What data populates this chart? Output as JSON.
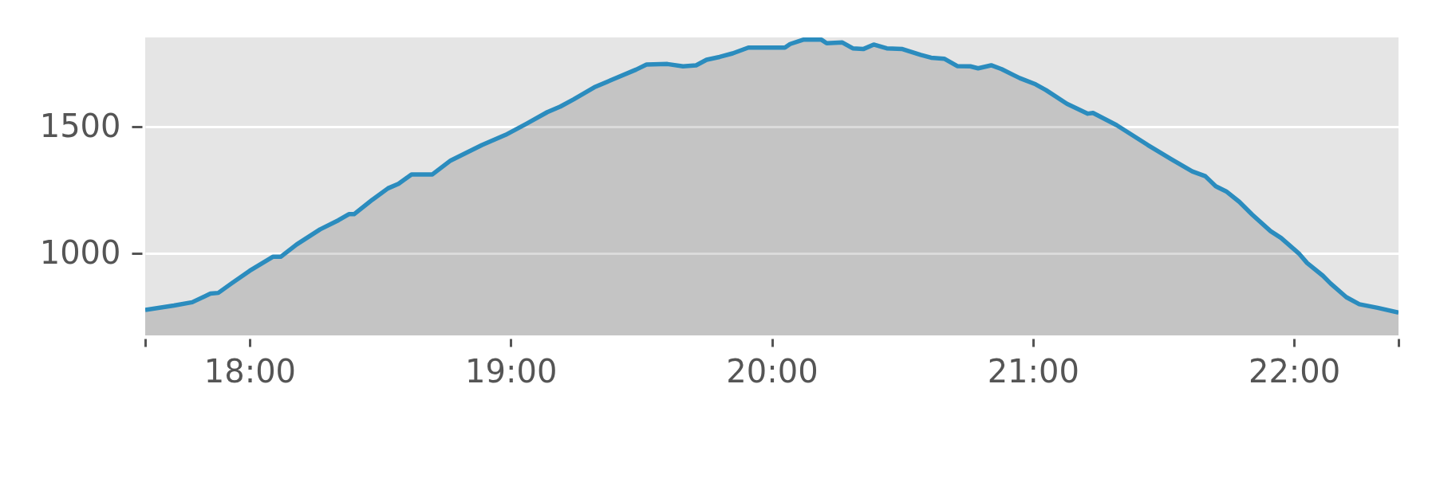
{
  "chart_data": {
    "type": "area",
    "color": "#2b8cbe",
    "x": [
      17.6,
      17.71,
      17.78,
      17.85,
      17.88,
      17.93,
      18.0,
      18.09,
      18.12,
      18.18,
      18.27,
      18.34,
      18.38,
      18.4,
      18.47,
      18.53,
      18.57,
      18.62,
      18.66,
      18.7,
      18.77,
      18.89,
      18.98,
      19.06,
      19.14,
      19.19,
      19.24,
      19.32,
      19.39,
      19.48,
      19.52,
      19.6,
      19.66,
      19.71,
      19.75,
      19.8,
      19.85,
      19.91,
      20.05,
      20.07,
      20.12,
      20.19,
      20.21,
      20.27,
      20.31,
      20.35,
      20.39,
      20.44,
      20.5,
      20.57,
      20.61,
      20.66,
      20.71,
      20.76,
      20.79,
      20.84,
      20.88,
      20.95,
      21.01,
      21.05,
      21.13,
      21.21,
      21.23,
      21.32,
      21.44,
      21.53,
      21.61,
      21.66,
      21.7,
      21.74,
      21.79,
      21.84,
      21.91,
      21.95,
      22.02,
      22.05,
      22.11,
      22.14,
      22.2,
      22.25,
      22.32,
      22.4
    ],
    "values": [
      778,
      795,
      808,
      842,
      845,
      882,
      932,
      988,
      988,
      1036,
      1096,
      1132,
      1156,
      1156,
      1213,
      1258,
      1276,
      1313,
      1313,
      1313,
      1368,
      1429,
      1469,
      1513,
      1559,
      1581,
      1609,
      1657,
      1688,
      1727,
      1747,
      1749,
      1740,
      1744,
      1766,
      1777,
      1791,
      1814,
      1814,
      1828,
      1845,
      1845,
      1831,
      1834,
      1811,
      1808,
      1826,
      1811,
      1808,
      1785,
      1774,
      1770,
      1741,
      1740,
      1732,
      1744,
      1729,
      1693,
      1669,
      1646,
      1592,
      1553,
      1556,
      1508,
      1429,
      1373,
      1325,
      1306,
      1266,
      1246,
      1205,
      1154,
      1089,
      1062,
      999,
      963,
      913,
      882,
      828,
      800,
      786,
      767
    ],
    "xlim": [
      17.6,
      22.4
    ],
    "ylim": [
      677,
      1854
    ],
    "xticks": [
      {
        "value": 17.6,
        "label": null
      },
      {
        "value": 18,
        "label": "18:00"
      },
      {
        "value": 19,
        "label": "19:00"
      },
      {
        "value": 20,
        "label": "20:00"
      },
      {
        "value": 21,
        "label": "21:00"
      },
      {
        "value": 22,
        "label": "22:00"
      },
      {
        "value": 22.4,
        "label": null
      }
    ],
    "yticks": [
      1000,
      1500
    ],
    "grid": "y"
  }
}
